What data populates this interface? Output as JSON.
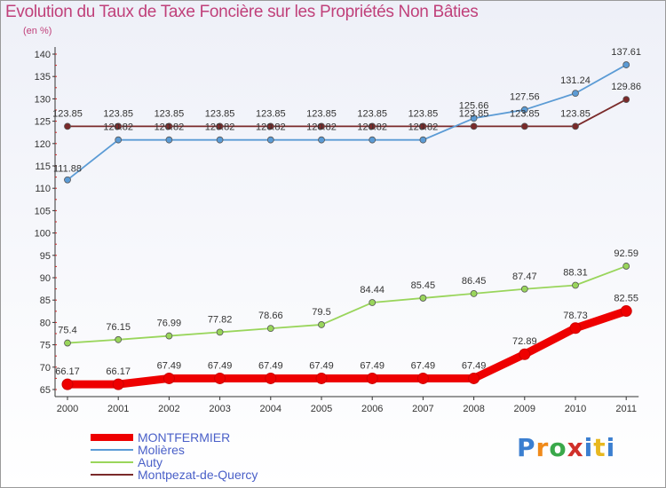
{
  "chart_data": {
    "type": "line",
    "title": "Evolution du Taux de Taxe Foncière sur les Propriétés Non Bâties",
    "subtitle": "(en %)",
    "xlabel": "",
    "ylabel": "(en %)",
    "categories": [
      "2000",
      "2001",
      "2002",
      "2003",
      "2004",
      "2005",
      "2006",
      "2007",
      "2008",
      "2009",
      "2010",
      "2011"
    ],
    "ylim": [
      65,
      140
    ],
    "yticks": [
      65,
      70,
      75,
      80,
      85,
      90,
      95,
      100,
      105,
      110,
      115,
      120,
      125,
      130,
      135,
      140
    ],
    "series": [
      {
        "name": "MONTFERMIER",
        "color": "#ee0000",
        "values": [
          66.17,
          66.17,
          67.49,
          67.49,
          67.49,
          67.49,
          67.49,
          67.49,
          67.49,
          72.89,
          78.73,
          82.55
        ],
        "labels": [
          "66.17",
          "66.17",
          "67.49",
          "67.49",
          "67.49",
          "67.49",
          "67.49",
          "67.49",
          "67.49",
          "72.89",
          "78.73",
          "82.55"
        ]
      },
      {
        "name": "Molières",
        "color": "#5b9bd5",
        "values": [
          111.88,
          120.82,
          120.82,
          120.82,
          120.82,
          120.82,
          120.82,
          120.82,
          125.66,
          127.56,
          131.24,
          137.61
        ],
        "labels": [
          "111.88",
          "120.82",
          "120.82",
          "120.82",
          "120.82",
          "120.82",
          "120.82",
          "120.82",
          "125.66",
          "127.56",
          "131.24",
          "137.61"
        ]
      },
      {
        "name": "Auty",
        "color": "#99d55b",
        "values": [
          75.4,
          76.15,
          76.99,
          77.82,
          78.66,
          79.5,
          84.44,
          85.45,
          86.45,
          87.47,
          88.31,
          92.59
        ],
        "labels": [
          "75.4",
          "76.15",
          "76.99",
          "77.82",
          "78.66",
          "79.5",
          "84.44",
          "85.45",
          "86.45",
          "87.47",
          "88.31",
          "92.59"
        ]
      },
      {
        "name": "Montpezat-de-Quercy",
        "color": "#7a2a2a",
        "values": [
          123.85,
          123.85,
          123.85,
          123.85,
          123.85,
          123.85,
          123.85,
          123.85,
          123.85,
          123.85,
          123.85,
          129.86
        ],
        "labels": [
          "123.85",
          "123.85",
          "123.85",
          "123.85",
          "123.85",
          "123.85",
          "123.85",
          "123.85",
          "123.85",
          "123.85",
          "123.85",
          "129.86"
        ]
      }
    ],
    "grid": false,
    "legend": "bottom-left"
  },
  "brand": {
    "p": "P",
    "r": "r",
    "o": "o",
    "x": "x",
    "i": "i",
    "t": "t",
    "tail": "i"
  }
}
